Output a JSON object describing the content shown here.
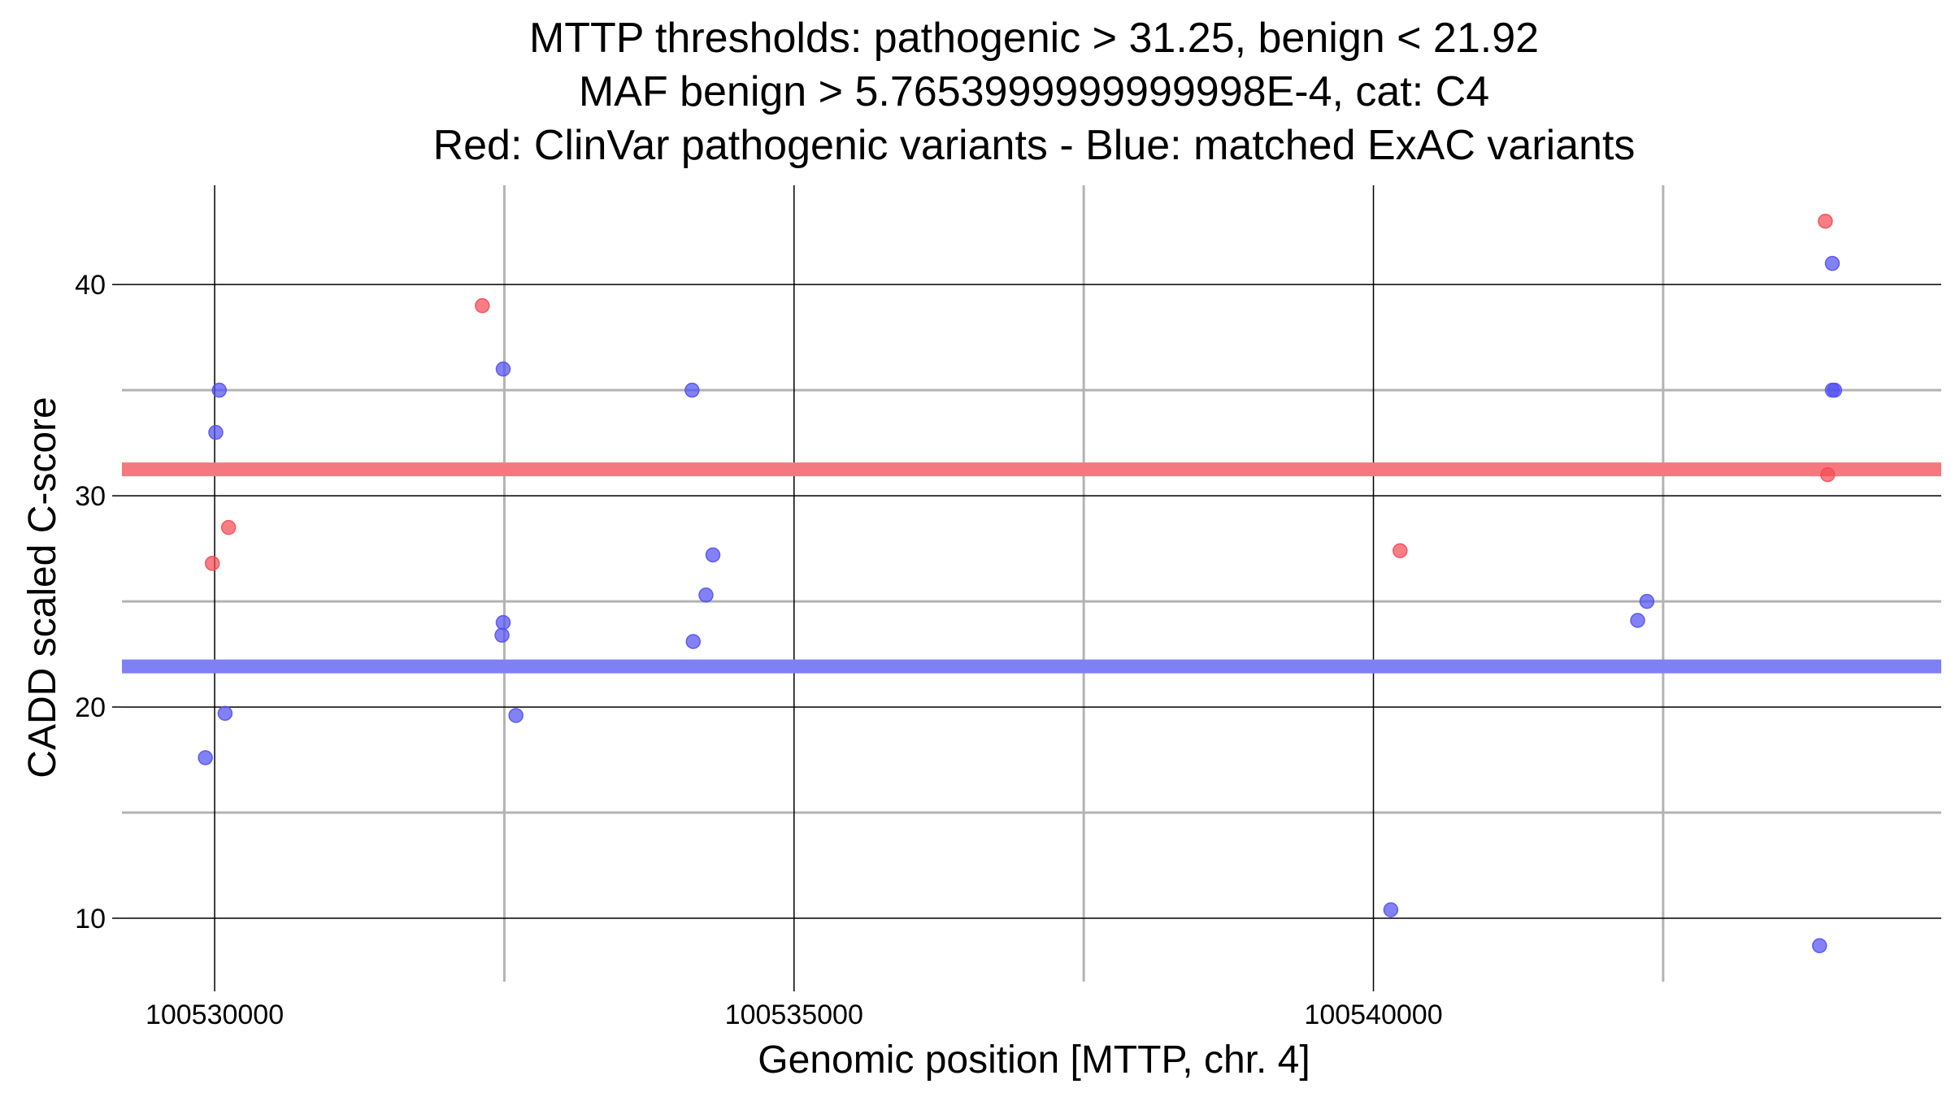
{
  "chart_data": {
    "type": "scatter",
    "title": [
      "MTTP thresholds: pathogenic > 31.25, benign < 21.92",
      "MAF benign > 5.7653999999999998E-4, cat: C4",
      "Red: ClinVar pathogenic variants - Blue: matched ExAC variants"
    ],
    "xlabel": "Genomic position [MTTP, chr. 4]",
    "ylabel": "CADD scaled C-score",
    "xlim": [
      100529200,
      100544900
    ],
    "ylim": [
      7,
      44.7
    ],
    "x_ticks": [
      100530000,
      100535000,
      100540000
    ],
    "x_tick_labels": [
      "100530000",
      "100535000",
      "100540000"
    ],
    "x_minor_grid": [
      100532500,
      100537500,
      100542500
    ],
    "y_ticks": [
      10,
      20,
      30,
      40
    ],
    "y_tick_labels": [
      "10",
      "20",
      "30",
      "40"
    ],
    "y_minor_grid": [
      15,
      25,
      35
    ],
    "grid": true,
    "legend": "none",
    "thresholds": [
      {
        "y": 31.25,
        "color": "#f6787f"
      },
      {
        "y": 21.92,
        "color": "#7f7ff6"
      }
    ],
    "series": [
      {
        "color": "#f44c56",
        "points": [
          {
            "x": 100529980,
            "y": 26.8
          },
          {
            "x": 100530120,
            "y": 28.5
          },
          {
            "x": 100532310,
            "y": 39.0
          },
          {
            "x": 100540230,
            "y": 27.4
          },
          {
            "x": 100543900,
            "y": 43.0
          },
          {
            "x": 100543920,
            "y": 31.0
          }
        ]
      },
      {
        "color": "#5252f2",
        "points": [
          {
            "x": 100529920,
            "y": 17.6
          },
          {
            "x": 100530010,
            "y": 33.0
          },
          {
            "x": 100530040,
            "y": 35.0
          },
          {
            "x": 100530090,
            "y": 19.7
          },
          {
            "x": 100532490,
            "y": 36.0
          },
          {
            "x": 100532490,
            "y": 24.0
          },
          {
            "x": 100532480,
            "y": 23.4
          },
          {
            "x": 100532600,
            "y": 19.6
          },
          {
            "x": 100534120,
            "y": 35.0
          },
          {
            "x": 100534130,
            "y": 23.1
          },
          {
            "x": 100534240,
            "y": 25.3
          },
          {
            "x": 100534300,
            "y": 27.2
          },
          {
            "x": 100540150,
            "y": 10.4
          },
          {
            "x": 100542280,
            "y": 24.1
          },
          {
            "x": 100542360,
            "y": 25.0
          },
          {
            "x": 100543960,
            "y": 41.0
          },
          {
            "x": 100543960,
            "y": 35.0
          },
          {
            "x": 100543980,
            "y": 35.0
          },
          {
            "x": 100543850,
            "y": 8.7
          }
        ]
      }
    ]
  }
}
